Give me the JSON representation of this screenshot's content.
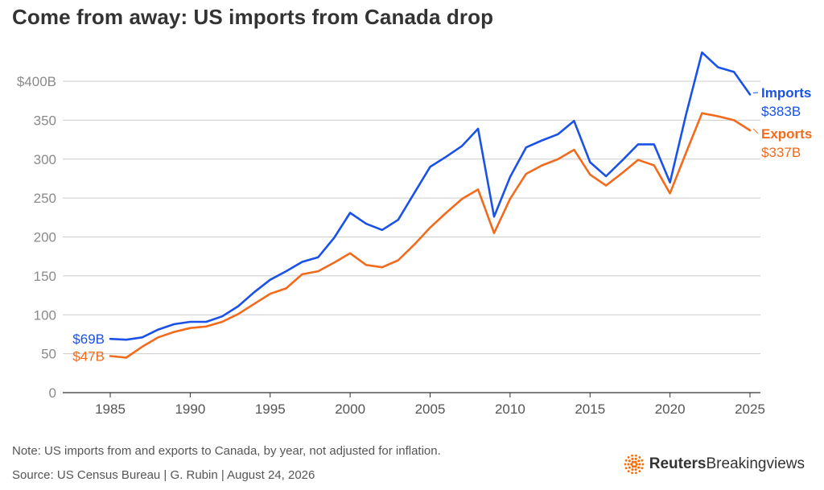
{
  "title": "Come from away: US imports from Canada drop",
  "note": "Note: US imports from and exports to Canada, by year, not adjusted for inflation.",
  "source": "Source: US Census Bureau | G. Rubin | August 24, 2026",
  "brand": {
    "name_bold": "Reuters",
    "name_regular": "Breakingviews",
    "logo_color": "#ff6a00"
  },
  "chart_data": {
    "type": "line",
    "title": "Come from away: US imports from Canada drop",
    "xlim": [
      1983,
      2026
    ],
    "ylim": [
      0,
      440
    ],
    "y_ticks": [
      0,
      50,
      100,
      150,
      200,
      250,
      300,
      350,
      400
    ],
    "y_tick_labels": [
      "0",
      "50",
      "100",
      "150",
      "200",
      "250",
      "300",
      "350",
      "$400B"
    ],
    "x_ticks": [
      1985,
      1990,
      1995,
      2000,
      2005,
      2010,
      2015,
      2020,
      2025
    ],
    "x_tick_labels": [
      "1985",
      "1990",
      "1995",
      "2000",
      "2005",
      "2010",
      "2015",
      "2020",
      "2025"
    ],
    "grid": "horizontal",
    "x": [
      1985,
      1986,
      1987,
      1988,
      1989,
      1990,
      1991,
      1992,
      1993,
      1994,
      1995,
      1996,
      1997,
      1998,
      1999,
      2000,
      2001,
      2002,
      2003,
      2004,
      2005,
      2006,
      2007,
      2008,
      2009,
      2010,
      2011,
      2012,
      2013,
      2014,
      2015,
      2016,
      2017,
      2018,
      2019,
      2020,
      2021,
      2022,
      2023,
      2024,
      2025
    ],
    "series": [
      {
        "name": "Imports",
        "color": "#1a52e8",
        "start_label": "$69B",
        "end_label": "$383B",
        "values": [
          69,
          68,
          71,
          81,
          88,
          91,
          91,
          98,
          111,
          129,
          145,
          156,
          168,
          174,
          199,
          231,
          217,
          209,
          222,
          256,
          290,
          303,
          317,
          339,
          226,
          277,
          315,
          324,
          332,
          349,
          296,
          278,
          298,
          319,
          319,
          270,
          357,
          437,
          418,
          412,
          383
        ]
      },
      {
        "name": "Exports",
        "color": "#f26b1d",
        "start_label": "$47B",
        "end_label": "$337B",
        "values": [
          47,
          45,
          59,
          71,
          78,
          83,
          85,
          91,
          101,
          114,
          127,
          134,
          152,
          156,
          167,
          179,
          164,
          161,
          170,
          190,
          212,
          231,
          249,
          261,
          205,
          249,
          281,
          292,
          300,
          312,
          280,
          266,
          282,
          299,
          292,
          256,
          308,
          359,
          355,
          350,
          337
        ]
      }
    ]
  }
}
